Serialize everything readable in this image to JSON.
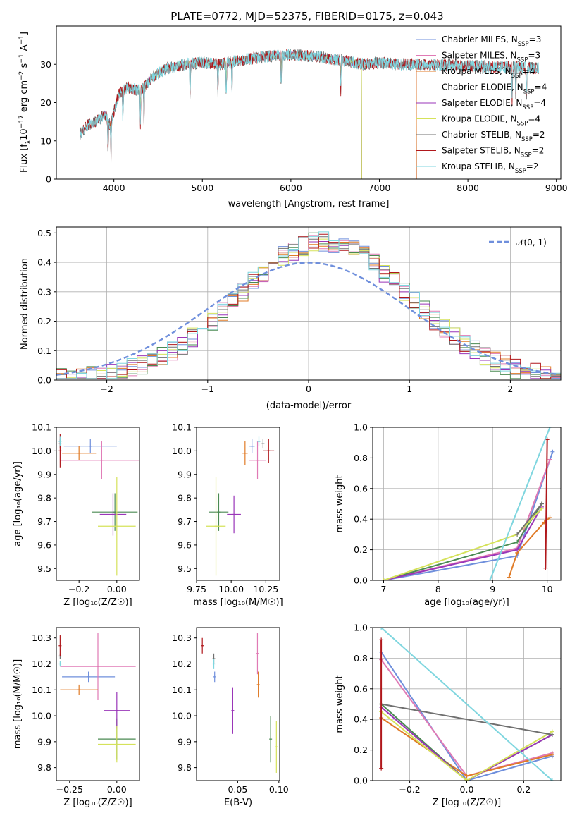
{
  "palette": {
    "Chabrier MILES": "#6f8fdc",
    "Salpeter MILES": "#e07ab5",
    "Kroupa MILES": "#e07b27",
    "Chabrier ELODIE": "#4a8a52",
    "Salpeter ELODIE": "#9a36b8",
    "Kroupa ELODIE": "#d5e25a",
    "Chabrier STELIB": "#707070",
    "Salpeter STELIB": "#b0171b",
    "Kroupa STELIB": "#7fd6df",
    "normal": "#6f8fdc"
  },
  "chart_data": [
    {
      "id": "spectrum",
      "type": "line",
      "title": "PLATE=0772, MJD=52375, FIBERID=0175, z=0.043",
      "xlabel": "wavelength [Angstrom, rest frame]",
      "ylabel_parts": [
        "Flux [f",
        "λ",
        "10",
        "−17",
        " erg cm",
        "−2",
        " s",
        "−1",
        " A",
        "−1",
        "]"
      ],
      "xlim": [
        3350,
        9050
      ],
      "ylim": [
        0,
        40
      ],
      "xticks": [
        4000,
        5000,
        6000,
        7000,
        8000,
        9000
      ],
      "yticks": [
        0,
        10,
        20,
        30
      ],
      "xtick_labels": [
        "4000",
        "5000",
        "6000",
        "7000",
        "8000",
        "9000"
      ],
      "ytick_labels": [
        "0",
        "10",
        "20",
        "30"
      ],
      "legend_position": "top-right",
      "legend": [
        {
          "label": "Chabrier MILES, N",
          "sub": "SSP",
          "tail": "=3",
          "key": "Chabrier MILES"
        },
        {
          "label": "Salpeter MILES, N",
          "sub": "SSP",
          "tail": "=3",
          "key": "Salpeter MILES"
        },
        {
          "label": "Kroupa MILES, N",
          "sub": "SSP",
          "tail": "=4",
          "key": "Kroupa MILES"
        },
        {
          "label": "Chabrier ELODIE, N",
          "sub": "SSP",
          "tail": "=4",
          "key": "Chabrier ELODIE"
        },
        {
          "label": "Salpeter ELODIE, N",
          "sub": "SSP",
          "tail": "=4",
          "key": "Salpeter ELODIE"
        },
        {
          "label": "Kroupa ELODIE, N",
          "sub": "SSP",
          "tail": "=4",
          "key": "Kroupa ELODIE"
        },
        {
          "label": "Chabrier STELIB, N",
          "sub": "SSP",
          "tail": "=2",
          "key": "Chabrier STELIB"
        },
        {
          "label": "Salpeter STELIB, N",
          "sub": "SSP",
          "tail": "=2",
          "key": "Salpeter STELIB"
        },
        {
          "label": "Kroupa STELIB, N",
          "sub": "SSP",
          "tail": "=2",
          "key": "Kroupa STELIB"
        }
      ],
      "continuum": [
        [
          3620,
          12
        ],
        [
          3700,
          14
        ],
        [
          3800,
          15
        ],
        [
          3900,
          17
        ],
        [
          3960,
          14
        ],
        [
          4050,
          22
        ],
        [
          4150,
          24
        ],
        [
          4300,
          23
        ],
        [
          4450,
          27
        ],
        [
          4600,
          29
        ],
        [
          4800,
          30
        ],
        [
          5000,
          30.5
        ],
        [
          5200,
          30
        ],
        [
          5400,
          31
        ],
        [
          5700,
          32
        ],
        [
          6000,
          32.5
        ],
        [
          6300,
          32
        ],
        [
          6600,
          31
        ],
        [
          6800,
          30
        ],
        [
          7000,
          30.5
        ],
        [
          7200,
          30
        ],
        [
          7500,
          30
        ],
        [
          7800,
          29.8
        ],
        [
          8100,
          29.5
        ],
        [
          8400,
          29.3
        ],
        [
          8800,
          29
        ]
      ],
      "series_ranges": [
        {
          "name": "Chabrier MILES",
          "x": [
            3620,
            7420
          ]
        },
        {
          "name": "Salpeter MILES",
          "x": [
            3620,
            7420
          ]
        },
        {
          "name": "Kroupa MILES",
          "x": [
            3620,
            7420
          ]
        },
        {
          "name": "Chabrier ELODIE",
          "x": [
            3900,
            6800
          ]
        },
        {
          "name": "Salpeter ELODIE",
          "x": [
            3900,
            6800
          ]
        },
        {
          "name": "Kroupa ELODIE",
          "x": [
            3900,
            6800
          ]
        },
        {
          "name": "Chabrier STELIB",
          "x": [
            3620,
            8800
          ]
        },
        {
          "name": "Salpeter STELIB",
          "x": [
            3620,
            8800
          ]
        },
        {
          "name": "Kroupa STELIB",
          "x": [
            3620,
            8800
          ]
        }
      ]
    },
    {
      "id": "residuals",
      "type": "line",
      "xlabel": "(data-model)/error",
      "ylabel": "Normed distribution",
      "xlim": [
        -2.5,
        2.5
      ],
      "ylim": [
        0,
        0.52
      ],
      "xticks": [
        -2,
        -1,
        0,
        1,
        2
      ],
      "yticks": [
        0.0,
        0.1,
        0.2,
        0.3,
        0.4,
        0.5
      ],
      "xtick_labels": [
        "−2",
        "−1",
        "0",
        "1",
        "2"
      ],
      "ytick_labels": [
        "0.0",
        "0.1",
        "0.2",
        "0.3",
        "0.4",
        "0.5"
      ],
      "legend_position": "top-right",
      "legend_label": "𝒩(0, 1)",
      "bin_width": 0.1,
      "histogram_series": [
        "Chabrier MILES",
        "Salpeter MILES",
        "Kroupa MILES",
        "Chabrier ELODIE",
        "Salpeter ELODIE",
        "Kroupa ELODIE",
        "Chabrier STELIB",
        "Salpeter STELIB",
        "Kroupa STELIB"
      ]
    },
    {
      "id": "age-vs-Z",
      "type": "scatter",
      "xlabel": "Z [log₁₀(Z/Z☉)]",
      "ylabel": "age  [log₁₀(age/yr)]",
      "xlim": [
        -0.32,
        0.12
      ],
      "ylim": [
        9.45,
        10.1
      ],
      "xticks": [
        -0.2,
        0.0
      ],
      "yticks": [
        9.5,
        9.6,
        9.7,
        9.8,
        9.9,
        10.0,
        10.1
      ],
      "xtick_labels": [
        "−0.2",
        "0.00"
      ],
      "ytick_labels": [
        "9.5",
        "9.6",
        "9.7",
        "9.8",
        "9.9",
        "10.0",
        "10.1"
      ],
      "points": [
        {
          "series": "Chabrier MILES",
          "x": -0.14,
          "y": 10.02,
          "xerr": 0.14,
          "yerr": 0.03
        },
        {
          "series": "Salpeter MILES",
          "x": -0.08,
          "y": 9.96,
          "xerr": 0.22,
          "yerr": 0.08
        },
        {
          "series": "Kroupa MILES",
          "x": -0.2,
          "y": 9.99,
          "xerr": 0.09,
          "yerr": 0.03
        },
        {
          "series": "Chabrier ELODIE",
          "x": -0.01,
          "y": 9.74,
          "xerr": 0.12,
          "yerr": 0.08
        },
        {
          "series": "Salpeter ELODIE",
          "x": -0.02,
          "y": 9.73,
          "xerr": 0.07,
          "yerr": 0.09
        },
        {
          "series": "Kroupa ELODIE",
          "x": 0.0,
          "y": 9.68,
          "xerr": 0.1,
          "yerr": 0.21
        },
        {
          "series": "Chabrier STELIB",
          "x": -0.3,
          "y": 10.03,
          "xerr": 0.0,
          "yerr": 0.02
        },
        {
          "series": "Salpeter STELIB",
          "x": -0.3,
          "y": 10.0,
          "xerr": 0.0,
          "yerr": 0.07
        },
        {
          "series": "Kroupa STELIB",
          "x": -0.3,
          "y": 10.04,
          "xerr": 0.0,
          "yerr": 0.02
        }
      ]
    },
    {
      "id": "age-vs-mass",
      "type": "scatter",
      "xlabel": "mass [log₁₀(M/M☉)]",
      "xlim": [
        9.75,
        10.35
      ],
      "ylim": [
        9.45,
        10.1
      ],
      "xticks": [
        9.75,
        10.0,
        10.25
      ],
      "yticks": [
        9.5,
        9.6,
        9.7,
        9.8,
        9.9,
        10.0,
        10.1
      ],
      "xtick_labels": [
        "9.75",
        "10.00",
        "10.25"
      ],
      "ytick_labels": [
        "9.5",
        "9.6",
        "9.7",
        "9.8",
        "9.9",
        "10.0",
        "10.1"
      ],
      "points": [
        {
          "series": "Chabrier MILES",
          "x": 10.15,
          "y": 10.02,
          "xerr": 0.02,
          "yerr": 0.03
        },
        {
          "series": "Salpeter MILES",
          "x": 10.19,
          "y": 9.96,
          "xerr": 0.06,
          "yerr": 0.08
        },
        {
          "series": "Kroupa MILES",
          "x": 10.1,
          "y": 9.99,
          "xerr": 0.02,
          "yerr": 0.05
        },
        {
          "series": "Chabrier ELODIE",
          "x": 9.91,
          "y": 9.74,
          "xerr": 0.07,
          "yerr": 0.08
        },
        {
          "series": "Salpeter ELODIE",
          "x": 10.02,
          "y": 9.73,
          "xerr": 0.05,
          "yerr": 0.08
        },
        {
          "series": "Kroupa ELODIE",
          "x": 9.89,
          "y": 9.68,
          "xerr": 0.07,
          "yerr": 0.21
        },
        {
          "series": "Chabrier STELIB",
          "x": 10.23,
          "y": 10.03,
          "xerr": 0.01,
          "yerr": 0.02
        },
        {
          "series": "Salpeter STELIB",
          "x": 10.27,
          "y": 10.0,
          "xerr": 0.04,
          "yerr": 0.05
        },
        {
          "series": "Kroupa STELIB",
          "x": 10.2,
          "y": 10.04,
          "xerr": 0.01,
          "yerr": 0.02
        }
      ]
    },
    {
      "id": "massweight-vs-age",
      "type": "line",
      "xlabel": "age  [log₁₀(age/yr)]",
      "ylabel": "mass weight",
      "xlim": [
        6.8,
        10.25
      ],
      "ylim": [
        0,
        1.0
      ],
      "xticks": [
        7,
        8,
        9,
        10
      ],
      "yticks": [
        0.0,
        0.2,
        0.4,
        0.6,
        0.8,
        1.0
      ],
      "xtick_labels": [
        "7",
        "8",
        "9",
        "10"
      ],
      "ytick_labels": [
        "0.0",
        "0.2",
        "0.4",
        "0.6",
        "0.8",
        "1.0"
      ],
      "series": [
        {
          "name": "Chabrier MILES",
          "x": [
            7.0,
            9.45,
            10.1
          ],
          "y": [
            0.0,
            0.16,
            0.84
          ]
        },
        {
          "name": "Salpeter MILES",
          "x": [
            7.0,
            9.45,
            10.05
          ],
          "y": [
            0.0,
            0.21,
            0.79
          ]
        },
        {
          "name": "Kroupa MILES",
          "x": [
            9.3,
            9.45,
            9.95,
            10.05
          ],
          "y": [
            0.02,
            0.18,
            0.38,
            0.41
          ]
        },
        {
          "name": "Chabrier ELODIE",
          "x": [
            7.0,
            9.45,
            9.9
          ],
          "y": [
            0.0,
            0.25,
            0.5
          ]
        },
        {
          "name": "Salpeter ELODIE",
          "x": [
            7.0,
            9.45,
            9.9
          ],
          "y": [
            0.0,
            0.2,
            0.48
          ]
        },
        {
          "name": "Kroupa ELODIE",
          "x": [
            7.0,
            9.45,
            9.9
          ],
          "y": [
            0.0,
            0.3,
            0.47
          ]
        },
        {
          "name": "Chabrier STELIB",
          "x": [
            9.45,
            9.9
          ],
          "y": [
            0.3,
            0.5
          ]
        },
        {
          "name": "Salpeter STELIB",
          "x": [
            9.97,
            10.0
          ],
          "y": [
            0.08,
            0.92
          ]
        },
        {
          "name": "Kroupa STELIB",
          "x": [
            8.95,
            10.05
          ],
          "y": [
            0.0,
            1.0
          ]
        }
      ]
    },
    {
      "id": "mass-vs-Z",
      "type": "scatter",
      "xlabel": "Z [log₁₀(Z/Z☉)]",
      "ylabel": "mass [log₁₀(M/M☉)]",
      "xlim": [
        -0.32,
        0.12
      ],
      "ylim": [
        9.75,
        10.34
      ],
      "xticks": [
        -0.25,
        0.0
      ],
      "yticks": [
        9.8,
        9.9,
        10.0,
        10.1,
        10.2,
        10.3
      ],
      "xtick_labels": [
        "−0.25",
        "0.00"
      ],
      "ytick_labels": [
        "9.8",
        "9.9",
        "10.0",
        "10.1",
        "10.2",
        "10.3"
      ],
      "points": [
        {
          "series": "Chabrier MILES",
          "x": -0.15,
          "y": 10.15,
          "xerr": 0.14,
          "yerr": 0.02
        },
        {
          "series": "Salpeter MILES",
          "x": -0.1,
          "y": 10.19,
          "xerr": 0.2,
          "yerr": 0.13
        },
        {
          "series": "Kroupa MILES",
          "x": -0.2,
          "y": 10.1,
          "xerr": 0.1,
          "yerr": 0.02
        },
        {
          "series": "Chabrier ELODIE",
          "x": 0.0,
          "y": 9.91,
          "xerr": 0.1,
          "yerr": 0.08
        },
        {
          "series": "Salpeter ELODIE",
          "x": 0.0,
          "y": 10.02,
          "xerr": 0.07,
          "yerr": 0.07
        },
        {
          "series": "Kroupa ELODIE",
          "x": 0.0,
          "y": 9.89,
          "xerr": 0.1,
          "yerr": 0.07
        },
        {
          "series": "Chabrier STELIB",
          "x": -0.3,
          "y": 10.23,
          "xerr": 0.0,
          "yerr": 0.01
        },
        {
          "series": "Salpeter STELIB",
          "x": -0.3,
          "y": 10.27,
          "xerr": 0.0,
          "yerr": 0.04
        },
        {
          "series": "Kroupa STELIB",
          "x": -0.3,
          "y": 10.2,
          "xerr": 0.0,
          "yerr": 0.01
        }
      ]
    },
    {
      "id": "mass-vs-EBV",
      "type": "scatter",
      "xlabel": "E(B-V)",
      "xlim": [
        0.0,
        0.101
      ],
      "ylim": [
        9.75,
        10.34
      ],
      "xticks": [
        0.05,
        0.1
      ],
      "yticks": [
        9.8,
        9.9,
        10.0,
        10.1,
        10.2,
        10.3
      ],
      "xtick_labels": [
        "0.05",
        "0.10"
      ],
      "ytick_labels": [
        "9.8",
        "9.9",
        "10.0",
        "10.1",
        "10.2",
        "10.3"
      ],
      "points": [
        {
          "series": "Chabrier MILES",
          "x": 0.022,
          "y": 10.15,
          "yerr": 0.02
        },
        {
          "series": "Salpeter MILES",
          "x": 0.074,
          "y": 10.24,
          "yerr": 0.08
        },
        {
          "series": "Kroupa MILES",
          "x": 0.075,
          "y": 10.12,
          "yerr": 0.05
        },
        {
          "series": "Chabrier ELODIE",
          "x": 0.09,
          "y": 9.91,
          "yerr": 0.09
        },
        {
          "series": "Salpeter ELODIE",
          "x": 0.044,
          "y": 10.02,
          "yerr": 0.09
        },
        {
          "series": "Kroupa ELODIE",
          "x": 0.097,
          "y": 9.88,
          "yerr": 0.1
        },
        {
          "series": "Chabrier STELIB",
          "x": 0.021,
          "y": 10.22,
          "yerr": 0.02
        },
        {
          "series": "Salpeter STELIB",
          "x": 0.007,
          "y": 10.27,
          "yerr": 0.03
        },
        {
          "series": "Kroupa STELIB",
          "x": 0.021,
          "y": 10.2,
          "yerr": 0.02
        }
      ]
    },
    {
      "id": "massweight-vs-Z",
      "type": "line",
      "xlabel": "Z [log₁₀(Z/Z☉)]",
      "ylabel": "mass weight",
      "xlim": [
        -0.33,
        0.33
      ],
      "ylim": [
        0,
        1.0
      ],
      "xticks": [
        -0.2,
        0.0,
        0.2
      ],
      "yticks": [
        0.0,
        0.2,
        0.4,
        0.6,
        0.8,
        1.0
      ],
      "xtick_labels": [
        "−0.2",
        "0.0",
        "0.2"
      ],
      "ytick_labels": [
        "0.0",
        "0.2",
        "0.4",
        "0.6",
        "0.8",
        "1.0"
      ],
      "series": [
        {
          "name": "Chabrier MILES",
          "x": [
            -0.3,
            0.0,
            0.3
          ],
          "y": [
            0.84,
            0.0,
            0.16
          ]
        },
        {
          "name": "Salpeter MILES",
          "x": [
            -0.3,
            0.0,
            0.3
          ],
          "y": [
            0.79,
            0.03,
            0.18
          ]
        },
        {
          "name": "Kroupa MILES",
          "x": [
            -0.3,
            0.0,
            0.3
          ],
          "y": [
            0.41,
            0.03,
            0.17
          ]
        },
        {
          "name": "Chabrier ELODIE",
          "x": [
            -0.3,
            0.0,
            0.3
          ],
          "y": [
            0.5,
            0.0,
            0.3
          ]
        },
        {
          "name": "Salpeter ELODIE",
          "x": [
            -0.3,
            0.0,
            0.3
          ],
          "y": [
            0.48,
            0.0,
            0.3
          ]
        },
        {
          "name": "Kroupa ELODIE",
          "x": [
            -0.3,
            0.0,
            0.3
          ],
          "y": [
            0.45,
            0.0,
            0.32
          ]
        },
        {
          "name": "Chabrier STELIB",
          "x": [
            -0.3,
            0.3
          ],
          "y": [
            0.5,
            0.3
          ]
        },
        {
          "name": "Salpeter STELIB",
          "x": [
            -0.3,
            -0.3
          ],
          "y": [
            0.08,
            0.92
          ]
        },
        {
          "name": "Kroupa STELIB",
          "x": [
            -0.3,
            0.3
          ],
          "y": [
            1.0,
            0.0
          ]
        }
      ]
    }
  ]
}
